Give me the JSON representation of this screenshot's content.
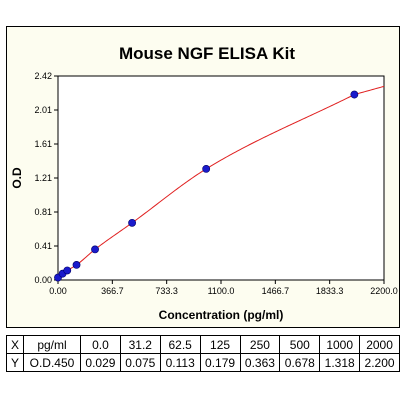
{
  "chart_data": {
    "type": "scatter",
    "title": "Mouse NGF ELISA Kit",
    "xlabel": "Concentration (pg/ml)",
    "ylabel": "O.D",
    "xlim": [
      0,
      2200
    ],
    "ylim": [
      0,
      2.42
    ],
    "x_ticks": [
      "0.00",
      "366.7",
      "733.3",
      "1100.0",
      "1466.7",
      "1833.3",
      "2200.0"
    ],
    "y_ticks": [
      "0.00",
      "0.41",
      "0.81",
      "1.21",
      "1.61",
      "2.01",
      "2.42"
    ],
    "points": [
      {
        "x": 0,
        "y": 0.029
      },
      {
        "x": 31.2,
        "y": 0.075
      },
      {
        "x": 62.5,
        "y": 0.113
      },
      {
        "x": 125,
        "y": 0.179
      },
      {
        "x": 250,
        "y": 0.363
      },
      {
        "x": 500,
        "y": 0.678
      },
      {
        "x": 1000,
        "y": 1.318
      },
      {
        "x": 2000,
        "y": 2.2
      }
    ],
    "grid": false,
    "colors": {
      "curve": "#e02020",
      "points": "#1a1acc",
      "panel": "#fdfdf0"
    }
  },
  "table": {
    "x_label": "X",
    "y_label": "Y",
    "x_unit": "pg/ml",
    "y_unit": "O.D.450",
    "x_values": [
      "0.0",
      "31.2",
      "62.5",
      "125",
      "250",
      "500",
      "1000",
      "2000"
    ],
    "y_values": [
      "0.029",
      "0.075",
      "0.113",
      "0.179",
      "0.363",
      "0.678",
      "1.318",
      "2.200"
    ]
  }
}
